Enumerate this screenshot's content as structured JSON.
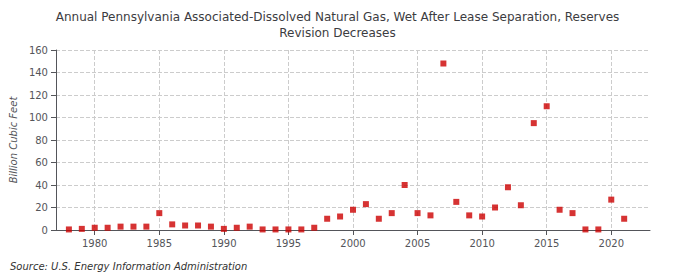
{
  "chart_data": {
    "type": "scatter",
    "title": "Annual Pennsylvania Associated-Dissolved Natural Gas, Wet After Lease Separation, Reserves\nRevision Decreases",
    "ylabel": "Billion Cubic Feet",
    "annotation": "Source: U.S. Energy Information Administration",
    "color": "#cc0000",
    "marker": "square",
    "x": [
      1978,
      1979,
      1980,
      1981,
      1982,
      1983,
      1984,
      1985,
      1986,
      1987,
      1988,
      1989,
      1990,
      1991,
      1992,
      1993,
      1994,
      1995,
      1996,
      1997,
      1998,
      1999,
      2000,
      2001,
      2002,
      2003,
      2004,
      2005,
      2006,
      2007,
      2008,
      2009,
      2010,
      2011,
      2012,
      2013,
      2014,
      2015,
      2016,
      2017,
      2018,
      2019,
      2020,
      2021
    ],
    "values": [
      0.5,
      1,
      2,
      2,
      3,
      3,
      3,
      15,
      5,
      4,
      4,
      3,
      1,
      2,
      3,
      0.5,
      0.5,
      0.5,
      0.5,
      2,
      10,
      12,
      18,
      23,
      10,
      15,
      40,
      15,
      13,
      148,
      25,
      13,
      12,
      20,
      38,
      22,
      95,
      110,
      18,
      15,
      0.5,
      0.5,
      27,
      10
    ],
    "xlim": [
      1977,
      2023
    ],
    "ylim": [
      0,
      160
    ],
    "xticks": [
      1980,
      1985,
      1990,
      1995,
      2000,
      2005,
      2010,
      2015,
      2020
    ],
    "yticks": [
      0,
      20,
      40,
      60,
      80,
      100,
      120,
      140,
      160
    ],
    "grid": true
  }
}
